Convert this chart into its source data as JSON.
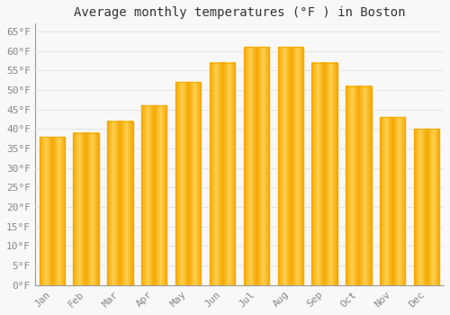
{
  "title": "Average monthly temperatures (°F ) in Boston",
  "months": [
    "Jan",
    "Feb",
    "Mar",
    "Apr",
    "May",
    "Jun",
    "Jul",
    "Aug",
    "Sep",
    "Oct",
    "Nov",
    "Dec"
  ],
  "values": [
    38,
    39,
    42,
    46,
    52,
    57,
    61,
    61,
    57,
    51,
    43,
    40
  ],
  "bar_color_center": "#FFD050",
  "bar_color_edge": "#F5A800",
  "background_color": "#F8F8F8",
  "grid_color": "#E0E0E0",
  "yticks": [
    0,
    5,
    10,
    15,
    20,
    25,
    30,
    35,
    40,
    45,
    50,
    55,
    60,
    65
  ],
  "ylim": [
    0,
    67
  ],
  "title_fontsize": 10,
  "tick_fontsize": 8,
  "tick_color": "#888888",
  "title_color": "#333333",
  "font_family": "monospace",
  "bar_width": 0.75,
  "figsize": [
    5.0,
    3.5
  ],
  "dpi": 100
}
